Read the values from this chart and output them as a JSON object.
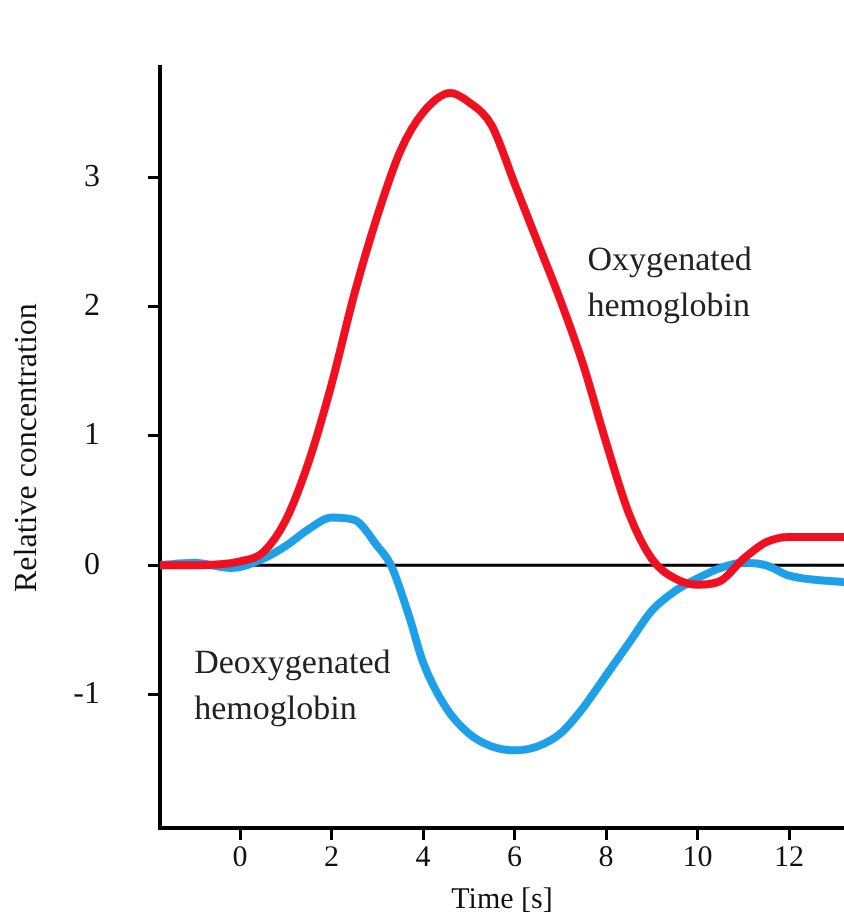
{
  "chart_data": {
    "type": "line",
    "xlabel": "Time [s]",
    "ylabel": "Relative concentration",
    "xlim": [
      -1.75,
      13.2
    ],
    "xticks": [
      0,
      2,
      4,
      6,
      8,
      10,
      12
    ],
    "ylim": [
      -2.03,
      3.85
    ],
    "yticks": [
      -1,
      0,
      1,
      2,
      3
    ],
    "grid": false,
    "legend": false,
    "marker": "none",
    "line_style": "solid",
    "ref_lines": [
      {
        "axis": "y",
        "value": 0,
        "color": "#000000"
      }
    ],
    "annotations": [
      "Oxygenated\nhemoglobin",
      "Deoxygenated\nhemoglobin"
    ],
    "series": [
      {
        "color": "#f01020",
        "x": [
          -1.75,
          -1,
          0,
          0.5,
          1,
          1.5,
          2,
          2.5,
          3,
          3.5,
          4,
          4.6,
          5,
          5.5,
          6,
          6.5,
          7,
          7.5,
          8,
          8.5,
          9,
          9.5,
          10,
          10.5,
          11,
          11.5,
          12,
          13.2
        ],
        "values": [
          0,
          0,
          0.03,
          0.1,
          0.35,
          0.8,
          1.4,
          2.1,
          2.7,
          3.2,
          3.5,
          3.65,
          3.58,
          3.4,
          2.95,
          2.5,
          2.05,
          1.55,
          0.95,
          0.4,
          0.05,
          -0.1,
          -0.15,
          -0.12,
          0.05,
          0.18,
          0.22,
          0.22
        ]
      },
      {
        "color": "#1ea0e8",
        "x": [
          -1.75,
          -1,
          -0.2,
          0.5,
          1,
          1.5,
          2,
          2.5,
          3,
          3.3,
          3.7,
          4,
          4.5,
          5,
          5.5,
          6,
          6.5,
          7,
          7.5,
          8,
          8.5,
          9,
          9.5,
          10,
          10.5,
          11,
          11.5,
          12,
          13.2
        ],
        "values": [
          0,
          0.02,
          -0.02,
          0.05,
          0.15,
          0.28,
          0.37,
          0.35,
          0.15,
          0,
          -0.4,
          -0.75,
          -1.1,
          -1.3,
          -1.4,
          -1.43,
          -1.4,
          -1.3,
          -1.1,
          -0.85,
          -0.6,
          -0.35,
          -0.2,
          -0.1,
          -0.02,
          0.02,
          0,
          -0.08,
          -0.13
        ]
      }
    ]
  }
}
